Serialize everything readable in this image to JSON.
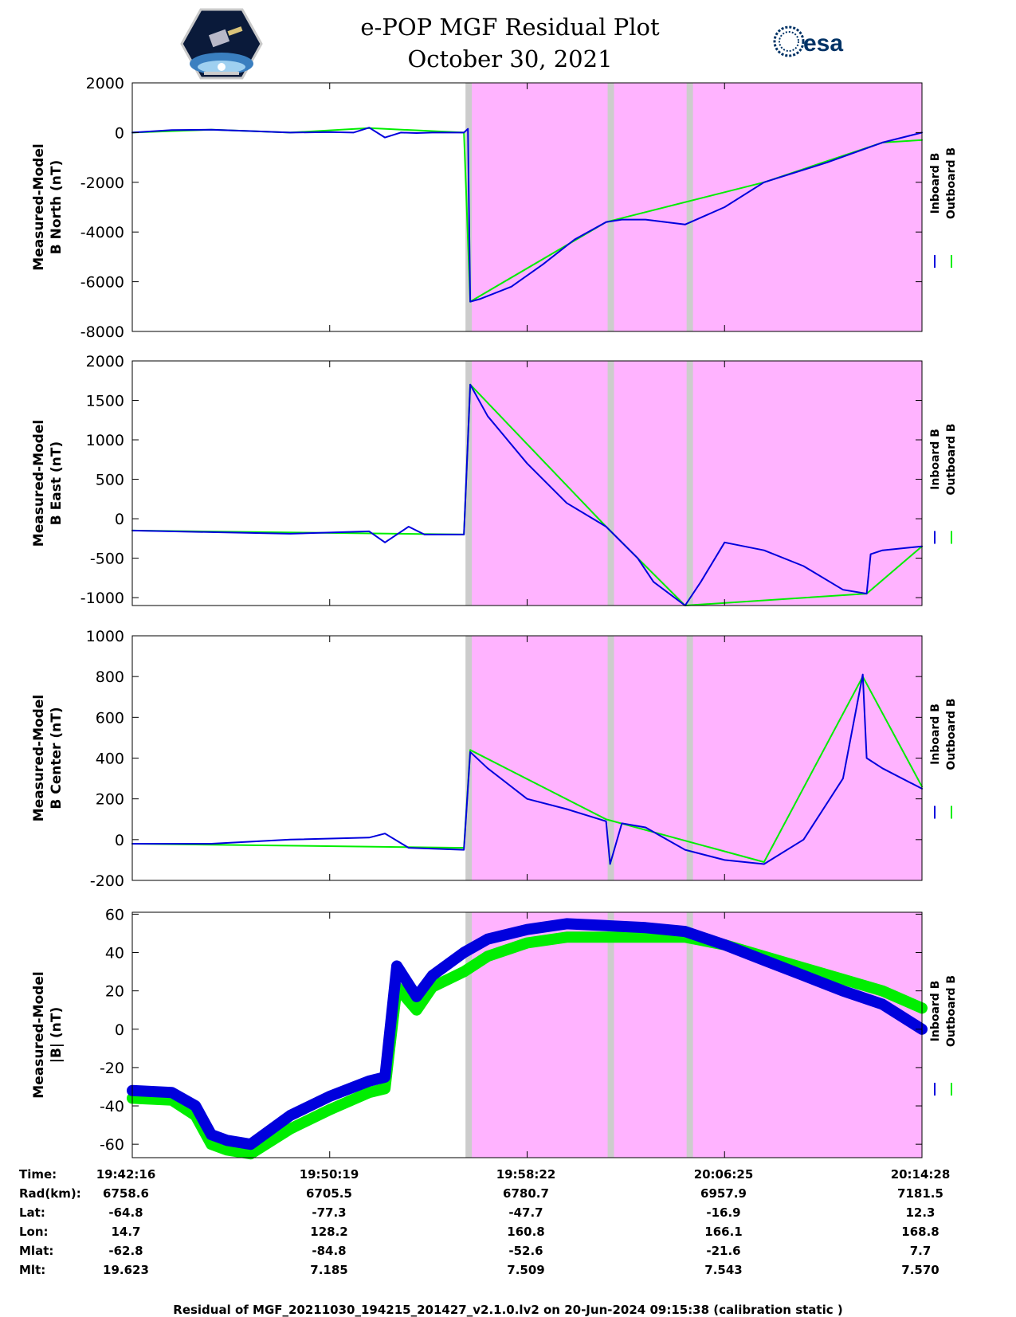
{
  "header": {
    "title_line1": "e-POP MGF Residual Plot",
    "title_line2": "October 30, 2021",
    "left_logo": "cassiope-mission-patch",
    "right_logo_text": "esa"
  },
  "colors": {
    "inboard": "#0000dd",
    "outboard": "#00ee00",
    "shaded_region": "#ffb3ff",
    "gap_band": "#cccccc"
  },
  "legend": {
    "inboard": "Inboard B",
    "outboard": "Outboard B"
  },
  "chart_data": [
    {
      "type": "line",
      "ylabel": [
        "Measured-Model",
        "B North (nT)"
      ],
      "ylim": [
        -8000,
        2000
      ],
      "yticks": [
        2000,
        0,
        -2000,
        -4000,
        -6000,
        -8000
      ],
      "series": [
        {
          "name": "Inboard B",
          "x": [
            0,
            0.05,
            0.1,
            0.15,
            0.2,
            0.25,
            0.28,
            0.3,
            0.32,
            0.34,
            0.36,
            0.38,
            0.4,
            0.42,
            0.425,
            0.428,
            0.44,
            0.48,
            0.52,
            0.56,
            0.6,
            0.62,
            0.65,
            0.7,
            0.75,
            0.8,
            0.88,
            0.95,
            1.0
          ],
          "values": [
            0,
            100,
            120,
            60,
            0,
            20,
            0,
            200,
            -200,
            0,
            -20,
            0,
            0,
            0,
            150,
            -6800,
            -6700,
            -6200,
            -5300,
            -4300,
            -3600,
            -3500,
            -3500,
            -3700,
            -3000,
            -2000,
            -1200,
            -400,
            0
          ]
        },
        {
          "name": "Outboard B",
          "x": [
            0,
            0.1,
            0.2,
            0.3,
            0.42,
            0.428,
            0.6,
            0.8,
            0.95,
            1.0
          ],
          "values": [
            0,
            120,
            0,
            180,
            0,
            -6800,
            -3600,
            -2000,
            -400,
            -300
          ]
        }
      ]
    },
    {
      "type": "line",
      "ylabel": [
        "Measured-Model",
        "B East (nT)"
      ],
      "ylim": [
        -1100,
        2000
      ],
      "yticks": [
        2000,
        1500,
        1000,
        500,
        0,
        -500,
        -1000
      ],
      "series": [
        {
          "name": "Inboard B",
          "x": [
            0,
            0.1,
            0.2,
            0.3,
            0.32,
            0.35,
            0.37,
            0.38,
            0.42,
            0.428,
            0.45,
            0.5,
            0.55,
            0.6,
            0.64,
            0.66,
            0.7,
            0.72,
            0.75,
            0.8,
            0.85,
            0.9,
            0.93,
            0.935,
            0.95,
            1.0
          ],
          "values": [
            -150,
            -170,
            -190,
            -160,
            -300,
            -100,
            -200,
            -200,
            -200,
            1700,
            1300,
            700,
            200,
            -100,
            -500,
            -800,
            -1100,
            -800,
            -300,
            -400,
            -600,
            -900,
            -950,
            -450,
            -400,
            -350
          ]
        },
        {
          "name": "Outboard B",
          "x": [
            0,
            0.42,
            0.428,
            0.6,
            0.7,
            0.93,
            1.0
          ],
          "values": [
            -150,
            -200,
            1700,
            -100,
            -1100,
            -950,
            -350
          ]
        }
      ]
    },
    {
      "type": "line",
      "ylabel": [
        "Measured-Model",
        "B Center (nT)"
      ],
      "ylim": [
        -200,
        1000
      ],
      "yticks": [
        1000,
        800,
        600,
        400,
        200,
        0,
        -200
      ],
      "series": [
        {
          "name": "Inboard B",
          "x": [
            0,
            0.1,
            0.2,
            0.3,
            0.32,
            0.35,
            0.42,
            0.428,
            0.45,
            0.5,
            0.55,
            0.6,
            0.605,
            0.62,
            0.65,
            0.7,
            0.75,
            0.8,
            0.85,
            0.9,
            0.925,
            0.93,
            0.95,
            1.0
          ],
          "values": [
            -20,
            -20,
            0,
            10,
            30,
            -40,
            -50,
            430,
            350,
            200,
            150,
            90,
            -120,
            80,
            60,
            -50,
            -100,
            -120,
            0,
            300,
            810,
            400,
            350,
            250
          ]
        },
        {
          "name": "Outboard B",
          "x": [
            0,
            0.42,
            0.428,
            0.6,
            0.8,
            0.925,
            1.0
          ],
          "values": [
            -20,
            -40,
            440,
            100,
            -110,
            800,
            260
          ]
        }
      ]
    },
    {
      "type": "line",
      "ylabel": [
        "Measured-Model",
        "|B| (nT)"
      ],
      "ylim": [
        -67,
        61
      ],
      "yticks": [
        60,
        40,
        20,
        0,
        -20,
        -40,
        -60
      ],
      "series": [
        {
          "name": "Inboard B",
          "x": [
            0,
            0.05,
            0.08,
            0.1,
            0.12,
            0.15,
            0.2,
            0.25,
            0.3,
            0.32,
            0.335,
            0.36,
            0.38,
            0.42,
            0.45,
            0.5,
            0.55,
            0.6,
            0.65,
            0.7,
            0.75,
            0.8,
            0.85,
            0.9,
            0.95,
            1.0
          ],
          "values": [
            -32,
            -33,
            -40,
            -55,
            -58,
            -60,
            -45,
            -35,
            -27,
            -25,
            33,
            17,
            28,
            40,
            47,
            52,
            55,
            54,
            53,
            51,
            44,
            36,
            28,
            20,
            13,
            0
          ]
        },
        {
          "name": "Outboard B",
          "x": [
            0,
            0.05,
            0.08,
            0.1,
            0.12,
            0.15,
            0.2,
            0.25,
            0.3,
            0.32,
            0.335,
            0.36,
            0.38,
            0.42,
            0.45,
            0.5,
            0.55,
            0.6,
            0.65,
            0.7,
            0.75,
            0.8,
            0.85,
            0.9,
            0.95,
            1.0
          ],
          "values": [
            -36,
            -37,
            -45,
            -60,
            -63,
            -65,
            -52,
            -42,
            -33,
            -31,
            22,
            10,
            22,
            30,
            38,
            45,
            48,
            48,
            48,
            48,
            44,
            38,
            32,
            26,
            20,
            11
          ]
        }
      ]
    }
  ],
  "regions": {
    "shaded": [
      0.428,
      1.0
    ],
    "gaps": [
      0.425,
      0.605,
      0.705
    ]
  },
  "footer": {
    "labels": [
      "Time:",
      "Rad(km):",
      "Lat:",
      "Lon:",
      "Mlat:",
      "Mlt:"
    ],
    "columns": [
      [
        "19:42:16",
        "6758.6",
        "-64.8",
        "14.7",
        "-62.8",
        "19.623"
      ],
      [
        "19:50:19",
        "6705.5",
        "-77.3",
        "128.2",
        "-84.8",
        "7.185"
      ],
      [
        "19:58:22",
        "6780.7",
        "-47.7",
        "160.8",
        "-52.6",
        "7.509"
      ],
      [
        "20:06:25",
        "6957.9",
        "-16.9",
        "166.1",
        "-21.6",
        "7.543"
      ],
      [
        "20:14:28",
        "7181.5",
        "12.3",
        "168.8",
        "7.7",
        "7.570"
      ]
    ],
    "footnote": "Residual of MGF_20211030_194215_201427_v2.1.0.lv2 on 20-Jun-2024 09:15:38 (calibration static )"
  }
}
